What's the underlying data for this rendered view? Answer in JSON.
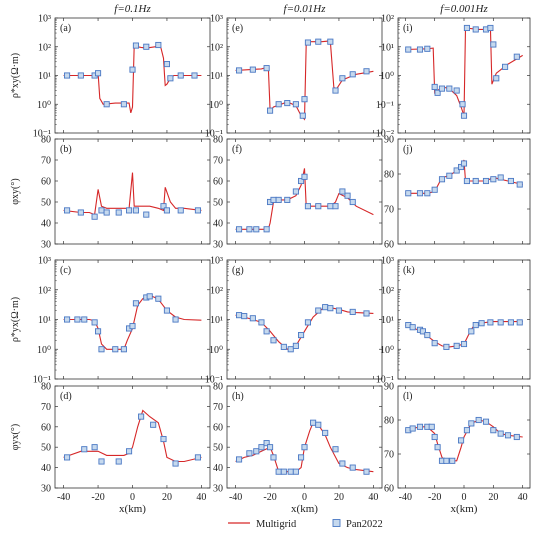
{
  "figure": {
    "column_titles": [
      "f=0.1Hz",
      "f=0.01Hz",
      "f=0.001Hz"
    ],
    "x_axis_label": "x(km)",
    "x_ticks": [
      -40,
      -20,
      0,
      20,
      40
    ],
    "legend": {
      "line_label": "Multigrid",
      "marker_label": "Pan2022",
      "line_color": "#d62728",
      "marker_color": "#4a78c4",
      "marker_fill": "#c6d9ee"
    }
  },
  "chart_data": [
    {
      "type": "line",
      "panel": "(a)",
      "ylabel": "ρ*xy(Ω·m)",
      "yscale": "log",
      "ylim": [
        0.1,
        1000
      ],
      "y_ticks": [
        "10⁻¹",
        "10⁰",
        "10¹",
        "10²",
        "10³"
      ],
      "series": [
        {
          "name": "Multigrid",
          "x": [
            -40,
            -22,
            -21,
            -20,
            -19,
            -17,
            -10,
            -2,
            -1,
            0,
            1,
            3,
            5,
            8,
            13,
            16,
            18,
            18.5,
            19,
            20,
            22,
            24,
            30,
            40
          ],
          "y": [
            10,
            10,
            10,
            12,
            1.6,
            1.0,
            1.1,
            1.1,
            0.5,
            0.8,
            110,
            100,
            95,
            90,
            100,
            120,
            40,
            12,
            4.5,
            5,
            8,
            10,
            10,
            10
          ]
        },
        {
          "name": "Pan2022",
          "x": [
            -38,
            -30,
            -22,
            -20,
            -15,
            -5,
            0,
            2,
            8,
            15,
            20,
            22,
            28,
            36
          ],
          "y": [
            10,
            10,
            10,
            12,
            1.0,
            1.0,
            16,
            110,
            100,
            115,
            25,
            8,
            10,
            10
          ]
        }
      ]
    },
    {
      "type": "line",
      "panel": "(e)",
      "yscale": "log",
      "ylim": [
        0.1,
        1000
      ],
      "y_ticks": [
        "10⁻¹",
        "10⁰",
        "10¹",
        "10²",
        "10³"
      ],
      "series": [
        {
          "name": "Multigrid",
          "x": [
            -40,
            -25,
            -21,
            -20,
            -18,
            -10,
            -5,
            -2,
            0,
            1,
            3,
            10,
            15,
            17,
            18,
            22,
            30,
            40
          ],
          "y": [
            15,
            17,
            20,
            0.6,
            0.8,
            1.2,
            0.9,
            0.4,
            0.3,
            120,
            150,
            150,
            160,
            4,
            3,
            7,
            11,
            14
          ],
          "dx": 0
        },
        {
          "name": "Pan2022",
          "x": [
            -38,
            -30,
            -22,
            -20,
            -15,
            -10,
            -5,
            -1,
            0,
            2,
            8,
            15,
            18,
            22,
            28,
            36
          ],
          "y": [
            15,
            16,
            18,
            0.6,
            1.0,
            1.1,
            1.0,
            0.4,
            1.5,
            140,
            150,
            150,
            3,
            8,
            11,
            14
          ]
        }
      ]
    },
    {
      "type": "line",
      "panel": "(i)",
      "yscale": "log",
      "ylim": [
        0.01,
        100
      ],
      "y_ticks": [
        "10⁻²",
        "10⁻¹",
        "10⁰",
        "10¹",
        "10²"
      ],
      "series": [
        {
          "name": "Multigrid",
          "x": [
            -40,
            -25,
            -21,
            -20,
            -18,
            -15,
            -10,
            -5,
            -2,
            0,
            1,
            10,
            15,
            18,
            19,
            22,
            30,
            40
          ],
          "y": [
            8,
            8.5,
            9,
            0.25,
            0.3,
            0.4,
            0.35,
            0.2,
            0.08,
            0.04,
            45,
            40,
            40,
            50,
            0.5,
            1.2,
            2.5,
            5
          ]
        },
        {
          "name": "Pan2022",
          "x": [
            -38,
            -30,
            -25,
            -20,
            -18,
            -15,
            -10,
            -5,
            -1,
            0,
            2,
            8,
            15,
            18,
            20,
            22,
            28,
            36
          ],
          "y": [
            8,
            8,
            8.5,
            0.4,
            0.25,
            0.35,
            0.35,
            0.3,
            0.1,
            0.04,
            45,
            40,
            40,
            45,
            12,
            0.8,
            2,
            4.5
          ]
        }
      ]
    },
    {
      "type": "line",
      "panel": "(b)",
      "ylabel": "φxy(°)",
      "ylim": [
        30,
        80
      ],
      "y_ticks": [
        "30",
        "40",
        "50",
        "60",
        "70",
        "80"
      ],
      "series": [
        {
          "name": "Multigrid",
          "x": [
            -40,
            -30,
            -25,
            -22,
            -20,
            -18,
            -15,
            -10,
            -5,
            -2,
            0,
            1,
            5,
            10,
            15,
            18,
            19,
            22,
            25,
            30,
            40
          ],
          "y": [
            46,
            45,
            45,
            44,
            56,
            48,
            47,
            47,
            47,
            47,
            64,
            48,
            48,
            48,
            47,
            46,
            57,
            50,
            47,
            47,
            46
          ]
        },
        {
          "name": "Pan2022",
          "x": [
            -38,
            -30,
            -22,
            -18,
            -15,
            -8,
            -2,
            2,
            8,
            18,
            20,
            28,
            38
          ],
          "y": [
            46,
            45,
            43,
            46,
            45,
            45,
            46,
            46,
            44,
            48,
            46,
            46,
            46
          ]
        }
      ]
    },
    {
      "type": "line",
      "panel": "(f)",
      "ylim": [
        30,
        80
      ],
      "y_ticks": [
        "30",
        "40",
        "50",
        "60",
        "70",
        "80"
      ],
      "series": [
        {
          "name": "Multigrid",
          "x": [
            -40,
            -30,
            -25,
            -21,
            -20,
            -18,
            -15,
            -10,
            -5,
            -2,
            0,
            1,
            5,
            10,
            15,
            18,
            20,
            25,
            30,
            40
          ],
          "y": [
            37,
            37,
            37,
            37,
            40,
            50,
            51,
            51,
            53,
            58,
            66,
            48,
            48,
            48,
            48,
            50,
            54,
            52,
            48,
            44
          ]
        },
        {
          "name": "Pan2022",
          "x": [
            -38,
            -32,
            -28,
            -22,
            -20,
            -18,
            -15,
            -10,
            -5,
            -2,
            0,
            2,
            8,
            15,
            18,
            22,
            25,
            28
          ],
          "y": [
            37,
            37,
            37,
            37,
            50,
            51,
            51,
            51,
            55,
            60,
            62,
            48,
            48,
            48,
            48,
            55,
            53,
            50
          ]
        }
      ]
    },
    {
      "type": "line",
      "panel": "(j)",
      "ylim": [
        60,
        90
      ],
      "y_ticks": [
        "60",
        "70",
        "80",
        "90"
      ],
      "series": [
        {
          "name": "Multigrid",
          "x": [
            -40,
            -30,
            -25,
            -20,
            -15,
            -10,
            -5,
            -2,
            0,
            1,
            5,
            10,
            15,
            20,
            25,
            30,
            40
          ],
          "y": [
            74.5,
            74.5,
            74.5,
            75,
            79,
            79.5,
            81,
            82,
            84,
            78,
            78,
            78,
            78,
            79,
            78.5,
            78,
            77
          ]
        },
        {
          "name": "Pan2022",
          "x": [
            -38,
            -30,
            -25,
            -20,
            -15,
            -10,
            -5,
            -2,
            0,
            2,
            8,
            15,
            20,
            25,
            32,
            38
          ],
          "y": [
            74.5,
            74.5,
            74.5,
            75.5,
            78.5,
            79.5,
            81,
            82,
            83,
            78,
            78,
            78,
            78.5,
            79,
            78,
            77
          ]
        }
      ]
    },
    {
      "type": "line",
      "panel": "(c)",
      "ylabel": "ρ*yx(Ω·m)",
      "yscale": "log",
      "ylim": [
        0.1,
        1000
      ],
      "y_ticks": [
        "10⁻¹",
        "10⁰",
        "10¹",
        "10²",
        "10³"
      ],
      "series": [
        {
          "name": "Multigrid",
          "x": [
            -40,
            -30,
            -25,
            -22,
            -20,
            -18,
            -15,
            -10,
            -5,
            -3,
            0,
            3,
            6,
            10,
            13,
            16,
            20,
            25,
            30,
            40
          ],
          "y": [
            10,
            10,
            10,
            9,
            5,
            1.5,
            1.0,
            1.0,
            1.0,
            2,
            5,
            30,
            50,
            65,
            55,
            40,
            20,
            12,
            10,
            9.5
          ]
        },
        {
          "name": "Pan2022",
          "x": [
            -38,
            -32,
            -28,
            -22,
            -20,
            -18,
            -10,
            -5,
            -2,
            0,
            2,
            8,
            10,
            15,
            20,
            25
          ],
          "y": [
            10,
            10,
            10,
            8,
            4,
            1.0,
            1.0,
            1.0,
            5,
            6,
            35,
            55,
            60,
            50,
            20,
            10
          ]
        }
      ]
    },
    {
      "type": "line",
      "panel": "(g)",
      "yscale": "log",
      "ylim": [
        0.1,
        1000
      ],
      "y_ticks": [
        "10⁻¹",
        "10⁰",
        "10¹",
        "10²",
        "10³"
      ],
      "series": [
        {
          "name": "Multigrid",
          "x": [
            -40,
            -35,
            -30,
            -25,
            -20,
            -15,
            -10,
            -5,
            0,
            5,
            10,
            15,
            20,
            25,
            30,
            40
          ],
          "y": [
            14,
            12,
            10,
            8,
            4,
            1.8,
            1.0,
            1.3,
            4,
            12,
            22,
            25,
            22,
            18,
            17,
            16
          ]
        },
        {
          "name": "Pan2022",
          "x": [
            -38,
            -35,
            -30,
            -25,
            -22,
            -18,
            -12,
            -8,
            -5,
            -2,
            2,
            8,
            12,
            15,
            20,
            28,
            36
          ],
          "y": [
            14,
            13,
            11,
            8,
            4,
            2,
            1.2,
            1.0,
            1.3,
            3,
            8,
            20,
            26,
            24,
            20,
            18,
            16
          ]
        }
      ]
    },
    {
      "type": "line",
      "panel": "(k)",
      "yscale": "log",
      "ylim": [
        0.1,
        1000
      ],
      "y_ticks": [
        "10⁻¹",
        "10⁰",
        "10¹",
        "10²",
        "10³"
      ],
      "series": [
        {
          "name": "Multigrid",
          "x": [
            -40,
            -35,
            -30,
            -25,
            -20,
            -15,
            -10,
            -5,
            0,
            3,
            6,
            10,
            15,
            20,
            30,
            40
          ],
          "y": [
            6.5,
            5.5,
            4,
            2.8,
            1.8,
            1.3,
            1.2,
            1.3,
            1.5,
            3,
            5.5,
            7,
            8,
            8.5,
            8.5,
            8.5
          ]
        },
        {
          "name": "Pan2022",
          "x": [
            -38,
            -35,
            -30,
            -28,
            -25,
            -20,
            -12,
            -5,
            0,
            5,
            8,
            12,
            18,
            25,
            32,
            38
          ],
          "y": [
            6.5,
            5.5,
            4.5,
            4,
            3,
            1.6,
            1.2,
            1.3,
            1.5,
            4,
            6.5,
            7.5,
            8,
            8,
            8,
            8
          ]
        }
      ]
    },
    {
      "type": "line",
      "panel": "(d)",
      "ylabel": "φyx(°)",
      "ylim": [
        30,
        80
      ],
      "y_ticks": [
        "30",
        "40",
        "50",
        "60",
        "70",
        "80"
      ],
      "series": [
        {
          "name": "Multigrid",
          "x": [
            -40,
            -30,
            -25,
            -20,
            -15,
            -10,
            -5,
            -2,
            0,
            3,
            6,
            10,
            15,
            18,
            20,
            25,
            30,
            40
          ],
          "y": [
            45,
            48,
            48,
            48,
            46,
            46,
            46,
            47,
            50,
            60,
            68,
            65,
            62,
            53,
            45,
            43,
            43,
            45
          ]
        },
        {
          "name": "Pan2022",
          "x": [
            -38,
            -28,
            -22,
            -18,
            -8,
            -2,
            5,
            12,
            18,
            25,
            38
          ],
          "y": [
            45,
            49,
            50,
            43,
            43,
            48,
            65,
            61,
            54,
            42,
            45
          ]
        }
      ]
    },
    {
      "type": "line",
      "panel": "(h)",
      "ylim": [
        30,
        80
      ],
      "y_ticks": [
        "30",
        "40",
        "50",
        "60",
        "70",
        "80"
      ],
      "series": [
        {
          "name": "Multigrid",
          "x": [
            -40,
            -35,
            -30,
            -25,
            -20,
            -18,
            -15,
            -12,
            -8,
            -5,
            -2,
            0,
            3,
            5,
            8,
            12,
            15,
            20,
            25,
            30,
            40
          ],
          "y": [
            43,
            45,
            46,
            48,
            50,
            46,
            38,
            38,
            38,
            38,
            40,
            50,
            58,
            62,
            61,
            56,
            50,
            42,
            40,
            39,
            38
          ]
        },
        {
          "name": "Pan2022",
          "x": [
            -38,
            -32,
            -28,
            -25,
            -22,
            -20,
            -18,
            -15,
            -12,
            -8,
            -5,
            -2,
            0,
            5,
            8,
            12,
            18,
            22,
            28,
            36
          ],
          "y": [
            44,
            47,
            48,
            50,
            52,
            50,
            45,
            38,
            38,
            38,
            38,
            45,
            50,
            62,
            61,
            57,
            49,
            42,
            40,
            38
          ]
        }
      ]
    },
    {
      "type": "line",
      "panel": "(l)",
      "ylim": [
        60,
        90
      ],
      "y_ticks": [
        "60",
        "70",
        "80",
        "90"
      ],
      "series": [
        {
          "name": "Multigrid",
          "x": [
            -40,
            -35,
            -30,
            -25,
            -20,
            -18,
            -15,
            -12,
            -8,
            -5,
            -2,
            0,
            5,
            10,
            15,
            20,
            25,
            30,
            40
          ],
          "y": [
            77,
            77.5,
            78,
            78,
            76,
            73,
            69,
            68,
            68,
            68,
            72,
            75,
            79,
            80,
            79.5,
            78,
            76,
            75.5,
            75
          ]
        },
        {
          "name": "Pan2022",
          "x": [
            -38,
            -35,
            -30,
            -25,
            -22,
            -20,
            -18,
            -15,
            -12,
            -8,
            -2,
            2,
            5,
            10,
            15,
            20,
            25,
            30,
            36
          ],
          "y": [
            77,
            77.5,
            78,
            78,
            78,
            75,
            72,
            68,
            68,
            68,
            74,
            77,
            79,
            80,
            79.5,
            77,
            76,
            75.5,
            75
          ]
        }
      ]
    }
  ]
}
